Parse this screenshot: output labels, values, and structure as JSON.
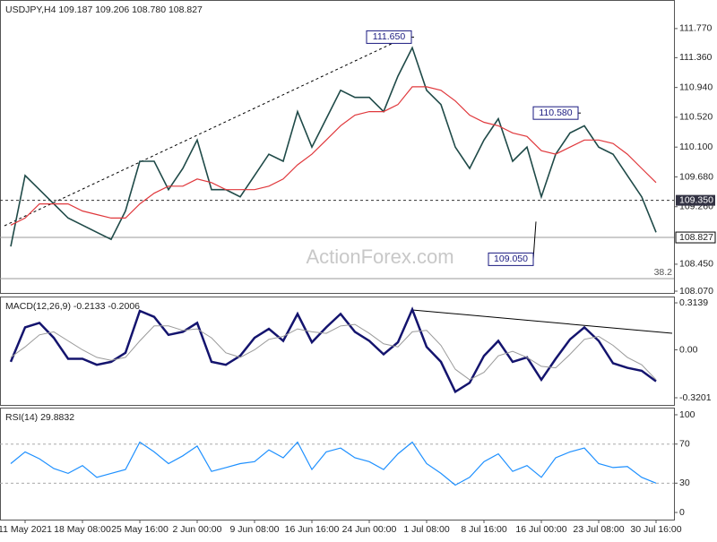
{
  "chart_data": [
    {
      "type": "line",
      "title": "USDJPY,H4  109.187 109.206 108.780 108.827",
      "ylim": [
        108.045,
        112.16
      ],
      "yticks": [
        {
          "value": 111.77,
          "label": "111.770"
        },
        {
          "value": 111.36,
          "label": "111.360"
        },
        {
          "value": 110.94,
          "label": "110.940"
        },
        {
          "value": 110.52,
          "label": "110.520"
        },
        {
          "value": 110.1,
          "label": "110.100"
        },
        {
          "value": 109.68,
          "label": "109.680"
        },
        {
          "value": 109.26,
          "label": "109.260"
        },
        {
          "value": 108.45,
          "label": "108.450"
        },
        {
          "value": 108.07,
          "label": "108.070"
        }
      ],
      "series": [
        {
          "color": "#1f4a48",
          "values": [
            108.7,
            109.7,
            109.5,
            109.3,
            109.1,
            109.0,
            108.9,
            108.8,
            109.2,
            109.9,
            109.9,
            109.5,
            109.8,
            110.2,
            109.5,
            109.5,
            109.4,
            109.7,
            110.0,
            109.9,
            110.6,
            110.1,
            110.5,
            110.9,
            110.8,
            110.8,
            110.6,
            111.1,
            111.5,
            110.9,
            110.7,
            110.1,
            109.8,
            110.2,
            110.5,
            109.9,
            110.1,
            109.4,
            110.0,
            110.3,
            110.4,
            110.1,
            110.0,
            109.7,
            109.4,
            108.9
          ]
        },
        {
          "color": "#e0383c",
          "values": [
            109.0,
            109.1,
            109.3,
            109.3,
            109.3,
            109.2,
            109.15,
            109.1,
            109.1,
            109.3,
            109.45,
            109.55,
            109.55,
            109.65,
            109.6,
            109.5,
            109.5,
            109.5,
            109.55,
            109.65,
            109.85,
            110.0,
            110.2,
            110.4,
            110.55,
            110.6,
            110.6,
            110.7,
            110.95,
            110.95,
            110.9,
            110.75,
            110.55,
            110.45,
            110.4,
            110.3,
            110.25,
            110.05,
            110.0,
            110.1,
            110.2,
            110.2,
            110.15,
            110.0,
            109.8,
            109.6
          ]
        }
      ],
      "annotations": [
        {
          "value": 111.65,
          "label": "111.650"
        },
        {
          "value": 110.58,
          "label": "110.580"
        },
        {
          "value": 109.05,
          "label": "109.050"
        }
      ],
      "level": {
        "value": 109.35,
        "label": "109.350"
      },
      "last_price": {
        "value": 108.827,
        "label": "108.827"
      },
      "fib_label": "38.2",
      "watermark": "ActionForex.com"
    },
    {
      "type": "line",
      "title": "MACD(12,26,9) -0.2133 -0.2006",
      "ylim": [
        -0.368,
        0.35
      ],
      "yticks": [
        0.3139,
        {
          "value": 0,
          "label": "0.00"
        },
        -0.3201
      ],
      "series": [
        {
          "color": "#14146e",
          "values": [
            -0.08,
            0.15,
            0.18,
            0.08,
            -0.06,
            -0.06,
            -0.1,
            -0.08,
            -0.02,
            0.26,
            0.22,
            0.1,
            0.12,
            0.18,
            -0.08,
            -0.1,
            -0.04,
            0.08,
            0.14,
            0.06,
            0.24,
            0.05,
            0.15,
            0.24,
            0.12,
            0.06,
            -0.03,
            0.05,
            0.27,
            0.02,
            -0.08,
            -0.28,
            -0.22,
            -0.04,
            0.06,
            -0.08,
            -0.05,
            -0.2,
            -0.06,
            0.07,
            0.15,
            0.06,
            -0.09,
            -0.12,
            -0.14,
            -0.21
          ]
        },
        {
          "color": "#9a9a9a",
          "values": [
            -0.05,
            0.02,
            0.1,
            0.12,
            0.06,
            0.0,
            -0.05,
            -0.07,
            -0.05,
            0.06,
            0.16,
            0.16,
            0.13,
            0.14,
            0.08,
            -0.02,
            -0.05,
            0.0,
            0.07,
            0.09,
            0.14,
            0.12,
            0.11,
            0.16,
            0.17,
            0.11,
            0.04,
            0.02,
            0.12,
            0.13,
            0.03,
            -0.13,
            -0.2,
            -0.15,
            -0.04,
            -0.01,
            -0.05,
            -0.11,
            -0.12,
            -0.03,
            0.07,
            0.09,
            0.03,
            -0.05,
            -0.1,
            -0.2
          ]
        }
      ]
    },
    {
      "type": "line",
      "title": "RSI(14) 29.8832",
      "ylim": [
        -7.3,
        106.4
      ],
      "yticks": [
        100,
        70,
        30,
        0
      ],
      "levels": [
        70,
        30
      ],
      "categories": [
        null,
        "11 May 2021",
        null,
        null,
        null,
        "18 May 08:00",
        null,
        null,
        null,
        "25 May 16:00",
        null,
        null,
        null,
        "2 Jun 00:00",
        null,
        null,
        null,
        "9 Jun 08:00",
        null,
        null,
        null,
        "16 Jun 16:00",
        null,
        null,
        null,
        "24 Jun 00:00",
        null,
        null,
        null,
        "1 Jul 08:00",
        null,
        null,
        null,
        "8 Jul 16:00",
        null,
        null,
        null,
        "16 Jul 00:00",
        null,
        null,
        null,
        "23 Jul 08:00",
        null,
        null,
        null,
        "30 Jul 16:00"
      ],
      "series": [
        {
          "color": "#1e90ff",
          "values": [
            50,
            62,
            55,
            45,
            40,
            48,
            36,
            40,
            44,
            72,
            62,
            50,
            58,
            68,
            42,
            46,
            50,
            52,
            64,
            56,
            72,
            44,
            62,
            66,
            56,
            52,
            44,
            60,
            72,
            50,
            40,
            28,
            36,
            52,
            60,
            42,
            48,
            36,
            56,
            62,
            66,
            50,
            46,
            47,
            36,
            30
          ]
        }
      ]
    }
  ]
}
